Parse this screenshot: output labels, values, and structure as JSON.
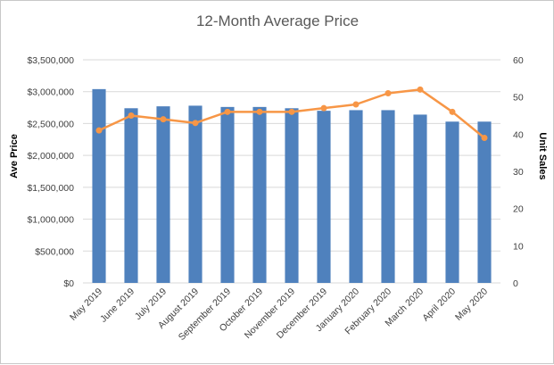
{
  "chart_data": {
    "type": "bar",
    "title": "12-Month Average Price",
    "categories": [
      "May 2019",
      "June 2019",
      "July 2019",
      "August 2019",
      "September 2019",
      "October 2019",
      "November 2019",
      "December 2019",
      "January 2020",
      "February 2020",
      "March 2020",
      "April 2020",
      "May 2020"
    ],
    "series": [
      {
        "type": "bar",
        "axis": "left",
        "color": "#4f81bd",
        "values": [
          3040000,
          2740000,
          2770000,
          2780000,
          2760000,
          2760000,
          2740000,
          2700000,
          2710000,
          2710000,
          2640000,
          2530000,
          2530000
        ]
      },
      {
        "type": "line",
        "axis": "right",
        "color": "#f79646",
        "values": [
          41,
          45,
          44,
          43,
          46,
          46,
          46,
          47,
          48,
          51,
          52,
          46,
          39
        ]
      }
    ],
    "ylabel": "Ave Price",
    "y2label": "Unit Sales",
    "ylim": [
      0,
      3500000
    ],
    "y2lim": [
      0,
      60
    ],
    "yticks": [
      "$0",
      "$500,000",
      "$1,000,000",
      "$1,500,000",
      "$2,000,000",
      "$2,500,000",
      "$3,000,000",
      "$3,500,000"
    ],
    "y2ticks": [
      "0",
      "10",
      "20",
      "30",
      "40",
      "50",
      "60"
    ],
    "grid": true,
    "legend": "none"
  }
}
